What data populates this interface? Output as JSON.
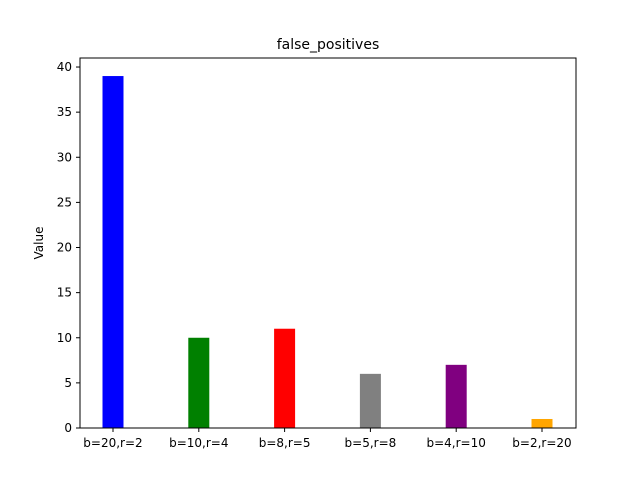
{
  "chart_data": {
    "type": "bar",
    "title": "false_positives",
    "xlabel": "",
    "ylabel": "Value",
    "categories": [
      "b=20,r=2",
      "b=10,r=4",
      "b=8,r=5",
      "b=5,r=8",
      "b=4,r=10",
      "b=2,r=20"
    ],
    "values": [
      39,
      10,
      11,
      6,
      7,
      1
    ],
    "colors": [
      "#0000ff",
      "#008000",
      "#ff0000",
      "#808080",
      "#800080",
      "#ffa500"
    ],
    "ylim": [
      0,
      41
    ],
    "yticks": [
      0,
      5,
      10,
      15,
      20,
      25,
      30,
      35,
      40
    ],
    "grid": false,
    "legend": "none"
  }
}
